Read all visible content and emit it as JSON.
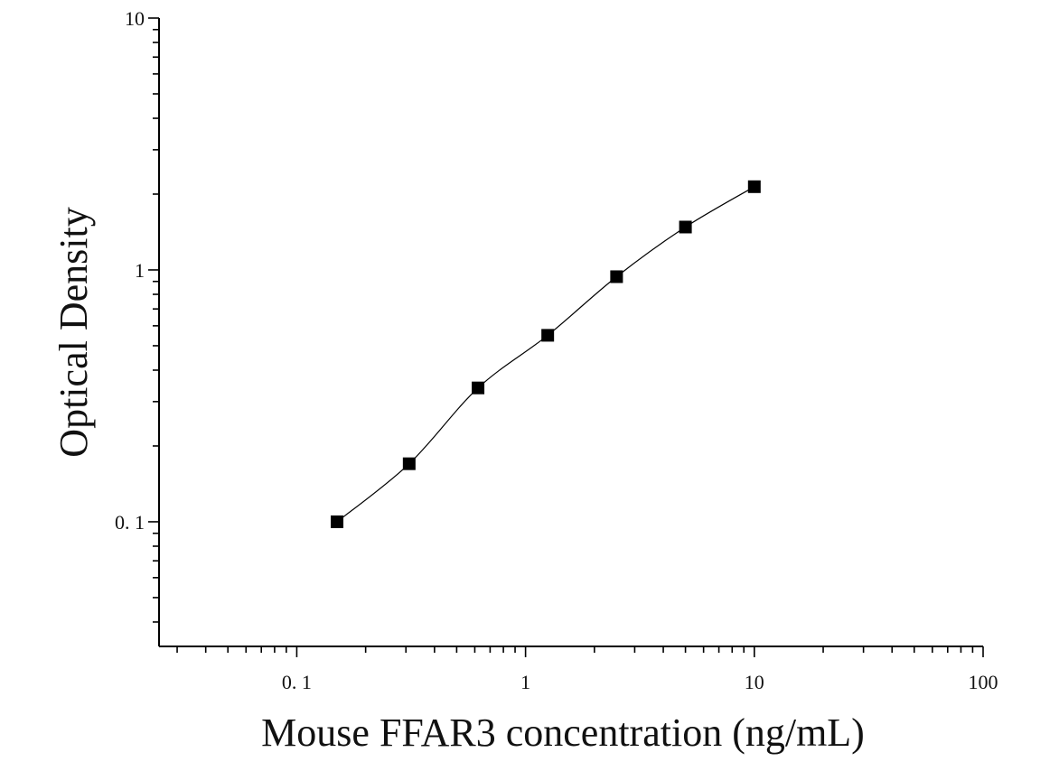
{
  "chart_data": {
    "type": "scatter",
    "xlabel": "Mouse FFAR3 concentration (ng/mL)",
    "ylabel": "Optical Density",
    "x_scale": "log",
    "y_scale": "log",
    "xlim": [
      0.025,
      100
    ],
    "ylim": [
      0.032,
      10
    ],
    "x_tick_labels": [
      {
        "value": 0.1,
        "label": "0. 1"
      },
      {
        "value": 1,
        "label": "1"
      },
      {
        "value": 10,
        "label": "10"
      },
      {
        "value": 100,
        "label": "100"
      }
    ],
    "y_tick_labels": [
      {
        "value": 0.1,
        "label": "0. 1"
      },
      {
        "value": 1,
        "label": "1"
      },
      {
        "value": 10,
        "label": "10"
      }
    ],
    "grid": false,
    "series": [
      {
        "x": [
          0.15,
          0.31,
          0.62,
          1.25,
          2.5,
          5,
          10
        ],
        "y": [
          0.1,
          0.17,
          0.34,
          0.55,
          0.94,
          1.48,
          2.14
        ],
        "marker": "square",
        "fit_line": true,
        "color": "#000000"
      }
    ]
  }
}
